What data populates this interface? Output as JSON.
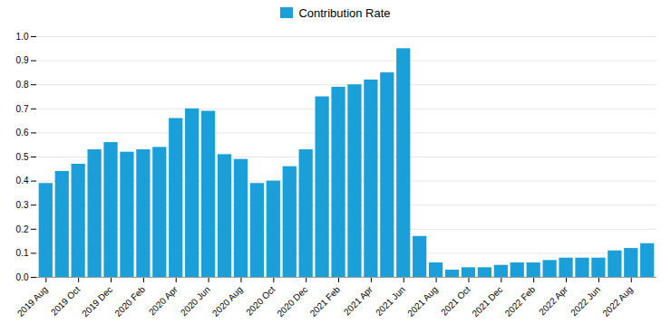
{
  "chart_data": {
    "type": "bar",
    "categories": [
      "2019 Aug",
      null,
      "2019 Oct",
      null,
      "2019 Dec",
      null,
      "2020 Feb",
      null,
      "2020 Apr",
      null,
      "2020 Jun",
      null,
      "2020 Aug",
      null,
      "2020 Oct",
      null,
      "2020 Dec",
      null,
      "2021 Feb",
      null,
      "2021 Apr",
      null,
      "2021 Jun",
      null,
      "2021 Aug",
      null,
      "2021 Oct",
      null,
      "2021 Dec",
      null,
      "2022 Feb",
      null,
      "2022 Apr",
      null,
      "2022 Jun",
      null,
      "2022 Aug",
      null
    ],
    "series": [
      {
        "name": "Contribution Rate",
        "color": "#1b9fd8",
        "values": [
          0.39,
          0.44,
          0.47,
          0.53,
          0.56,
          0.52,
          0.53,
          0.54,
          0.66,
          0.7,
          0.69,
          0.51,
          0.49,
          0.39,
          0.4,
          0.46,
          0.53,
          0.75,
          0.79,
          0.8,
          0.82,
          0.85,
          0.95,
          0.17,
          0.06,
          0.03,
          0.04,
          0.04,
          0.05,
          0.06,
          0.06,
          0.07,
          0.08,
          0.08,
          0.08,
          0.11,
          0.12,
          0.14
        ]
      }
    ],
    "ylim": [
      0,
      1
    ],
    "yticks": [
      {
        "value": 0,
        "label": "0.0"
      },
      0.1,
      0.2,
      0.3,
      0.4,
      0.5,
      0.6,
      0.7,
      0.8,
      0.9,
      {
        "value": 1,
        "label": "1.0"
      }
    ],
    "grid": true,
    "legend": "top"
  }
}
